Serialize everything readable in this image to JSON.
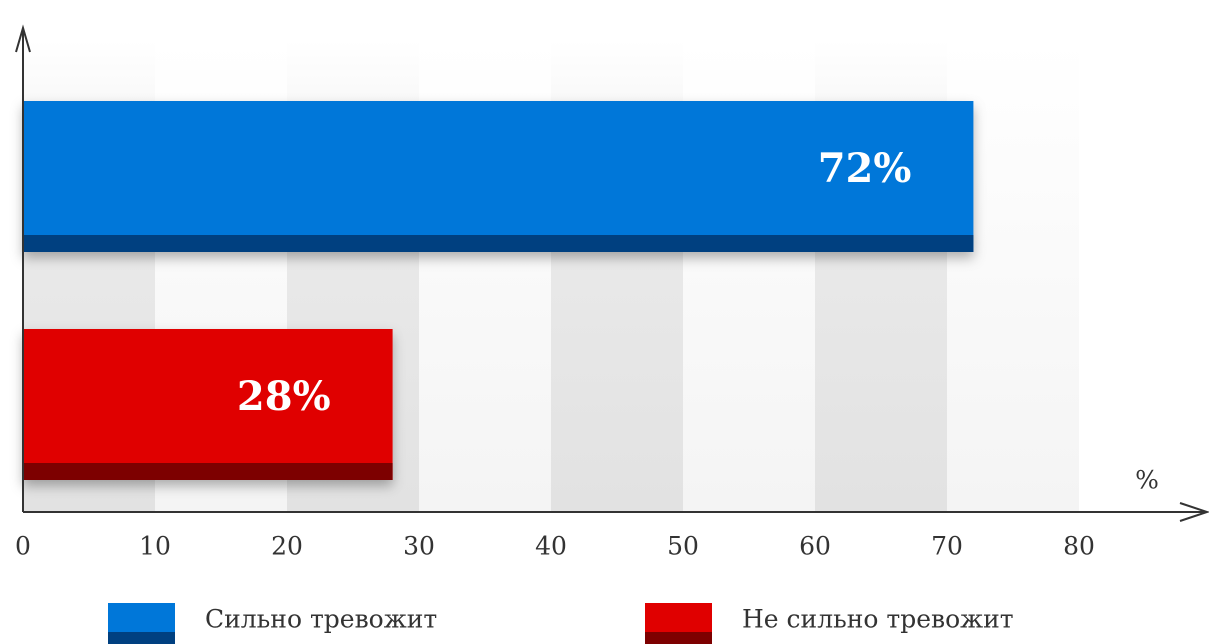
{
  "chart_data": {
    "type": "bar",
    "orientation": "horizontal",
    "x_label": "%",
    "series": [
      {
        "name": "Сильно тревожит",
        "color": "#0077d9",
        "shade": "#004080",
        "values": [
          72
        ],
        "value_labels": [
          "72%"
        ]
      },
      {
        "name": "Не сильно тревожит",
        "color": "#e00000",
        "shade": "#7d0000",
        "values": [
          28
        ],
        "value_labels": [
          "28%"
        ]
      }
    ],
    "xlim": [
      0,
      89
    ],
    "xticks": [
      0,
      10,
      20,
      30,
      40,
      50,
      60,
      70,
      80
    ],
    "grid": true
  }
}
